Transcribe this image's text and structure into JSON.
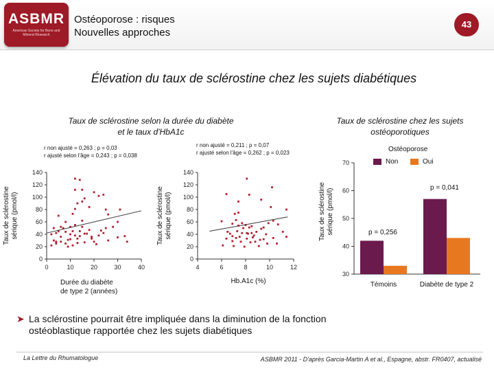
{
  "header": {
    "logo_text": "ASBMR",
    "logo_subtext": "American Society for Bone and Mineral Research",
    "title_line1": "Ostéoporose : risques",
    "title_line2": "Nouvelles approches",
    "slide_number": "43"
  },
  "main_title": "Élévation du taux de sclérostine chez les sujets diabétiques",
  "left_section": {
    "subtitle_line1": "Taux de sclérostine selon la durée du diabète",
    "subtitle_line2": "et le taux d'HbA1c"
  },
  "right_section": {
    "subtitle_line1": "Taux de sclérostine chez les sujets",
    "subtitle_line2": "ostéoporotiques"
  },
  "legend": {
    "title": "Ostéoporose",
    "items": [
      {
        "label": "Non",
        "color": "#6b1a4e"
      },
      {
        "label": "Oui",
        "color": "#e8781f"
      }
    ]
  },
  "chart_data": [
    {
      "type": "scatter",
      "title": "",
      "xlabel_line1": "Durée du diabète",
      "xlabel_line2": "de type 2 (années)",
      "ylabel_line1": "Taux de sclérostine",
      "ylabel_line2": "sérique (pmol/l)",
      "xlim": [
        0,
        40
      ],
      "ylim": [
        0,
        140
      ],
      "xticks": [
        "0",
        "10",
        "20",
        "30",
        "40"
      ],
      "yticks": [
        "0",
        "20",
        "40",
        "60",
        "80",
        "100",
        "120",
        "140"
      ],
      "stats_line1": "r non ajusté = 0,263 ; p = 0,03",
      "stats_line2": "r ajusté selon l'âge = 0,243 ; p = 0,038",
      "trend": {
        "x": [
          0,
          40
        ],
        "y": [
          42,
          78
        ]
      },
      "points": [
        [
          12,
          130
        ],
        [
          12,
          112
        ],
        [
          14,
          128
        ],
        [
          15,
          112
        ],
        [
          5,
          70
        ],
        [
          8,
          60
        ],
        [
          10,
          52
        ],
        [
          11,
          73
        ],
        [
          12,
          81
        ],
        [
          13,
          90
        ],
        [
          15,
          93
        ],
        [
          16,
          98
        ],
        [
          18,
          84
        ],
        [
          20,
          108
        ],
        [
          22,
          102
        ],
        [
          24,
          104
        ],
        [
          25,
          80
        ],
        [
          26,
          72
        ],
        [
          30,
          60
        ],
        [
          31,
          80
        ],
        [
          2,
          40
        ],
        [
          3,
          30
        ],
        [
          4,
          28
        ],
        [
          4,
          42
        ],
        [
          5,
          45
        ],
        [
          6,
          36
        ],
        [
          7,
          50
        ],
        [
          8,
          25
        ],
        [
          9,
          31
        ],
        [
          10,
          40
        ],
        [
          10,
          32
        ],
        [
          11,
          45
        ],
        [
          12,
          55
        ],
        [
          12,
          38
        ],
        [
          13,
          33
        ],
        [
          14,
          45
        ],
        [
          15,
          62
        ],
        [
          15,
          52
        ],
        [
          16,
          41
        ],
        [
          18,
          47
        ],
        [
          19,
          33
        ],
        [
          20,
          28
        ],
        [
          22,
          38
        ],
        [
          23,
          46
        ],
        [
          24,
          42
        ],
        [
          25,
          50
        ],
        [
          28,
          52
        ],
        [
          30,
          35
        ],
        [
          33,
          37
        ],
        [
          34,
          28
        ],
        [
          2,
          22
        ],
        [
          4,
          25
        ],
        [
          6,
          28
        ],
        [
          9,
          20
        ],
        [
          11,
          22
        ],
        [
          13,
          26
        ],
        [
          16,
          27
        ],
        [
          19,
          36
        ],
        [
          21,
          24
        ],
        [
          26,
          30
        ],
        [
          3,
          50
        ],
        [
          6,
          52
        ],
        [
          8,
          44
        ],
        [
          14,
          37
        ],
        [
          17,
          41
        ]
      ]
    },
    {
      "type": "scatter",
      "title": "",
      "xlabel": "Hb.A1c (%)",
      "ylabel_line1": "Taux de sclérostine",
      "ylabel_line2": "sérique (pmol/l)",
      "xlim": [
        4,
        12
      ],
      "ylim": [
        0,
        140
      ],
      "xticks": [
        "4",
        "6",
        "8",
        "10",
        "12"
      ],
      "yticks": [
        "0",
        "20",
        "40",
        "60",
        "80",
        "100",
        "120",
        "140"
      ],
      "stats_line1": "r non ajusté = 0,211 ; p = 0,07",
      "stats_line2": "r ajusté selon l'âge = 0,262 ; p = 0,023",
      "trend": {
        "x": [
          5,
          11.5
        ],
        "y": [
          45,
          68
        ]
      },
      "points": [
        [
          8.1,
          130
        ],
        [
          6.4,
          105
        ],
        [
          8.3,
          104
        ],
        [
          10.2,
          116
        ],
        [
          7.4,
          93
        ],
        [
          9.3,
          96
        ],
        [
          10.1,
          84
        ],
        [
          11.4,
          80
        ],
        [
          7.1,
          73
        ],
        [
          7.4,
          75
        ],
        [
          6.0,
          61
        ],
        [
          7.2,
          63
        ],
        [
          6.9,
          57
        ],
        [
          7.7,
          58
        ],
        [
          7.4,
          54
        ],
        [
          7.8,
          50
        ],
        [
          8.3,
          51
        ],
        [
          8.5,
          53
        ],
        [
          8.0,
          55
        ],
        [
          7.7,
          42
        ],
        [
          8.1,
          42
        ],
        [
          8.2,
          41
        ],
        [
          8.5,
          42
        ],
        [
          8.9,
          44
        ],
        [
          9.3,
          49
        ],
        [
          9.5,
          51
        ],
        [
          9.9,
          58
        ],
        [
          10.3,
          62
        ],
        [
          10.7,
          56
        ],
        [
          6.5,
          44
        ],
        [
          6.7,
          41
        ],
        [
          6.9,
          37
        ],
        [
          7.2,
          34
        ],
        [
          7.5,
          36
        ],
        [
          8.1,
          33
        ],
        [
          8.6,
          35
        ],
        [
          9.2,
          31
        ],
        [
          9.5,
          32
        ],
        [
          10.3,
          34
        ],
        [
          11.4,
          36
        ],
        [
          6.9,
          29
        ],
        [
          7.6,
          28
        ],
        [
          8.4,
          27
        ],
        [
          8.8,
          28
        ],
        [
          9.8,
          25
        ],
        [
          10.6,
          25
        ],
        [
          6.1,
          22
        ],
        [
          7.0,
          21
        ],
        [
          7.9,
          20
        ],
        [
          9.1,
          21
        ],
        [
          7.3,
          45
        ],
        [
          8.7,
          38
        ],
        [
          9.7,
          40
        ],
        [
          6.4,
          33
        ],
        [
          11.1,
          44
        ]
      ]
    },
    {
      "type": "bar",
      "title": "",
      "ylabel_line1": "Taux de sclérostine",
      "ylabel_line2": "sérique (pmol/l)",
      "categories": [
        "Témoins",
        "Diabète de type 2"
      ],
      "series": [
        {
          "name": "Non",
          "values": [
            42,
            57
          ]
        },
        {
          "name": "Oui",
          "values": [
            33,
            43
          ]
        }
      ],
      "ylim": [
        30,
        70
      ],
      "yticks": [
        "30",
        "40",
        "50",
        "60",
        "70"
      ],
      "annotations": [
        {
          "text": "p = 0,256",
          "category": "Témoins"
        },
        {
          "text": "p = 0,041",
          "category": "Diabète de type 2"
        }
      ]
    }
  ],
  "bullet": {
    "line1": "La sclérostine pourrait être impliquée dans la diminution de la fonction",
    "line2": "ostéoblastique rapportée chez les sujets diabétiques"
  },
  "footer": {
    "left": "La Lettre du Rhumatologue",
    "right": "ASBMR 2011 - D'après Garcia-Martin A et al., Espagne, abstr. FR0407, actualisé"
  }
}
